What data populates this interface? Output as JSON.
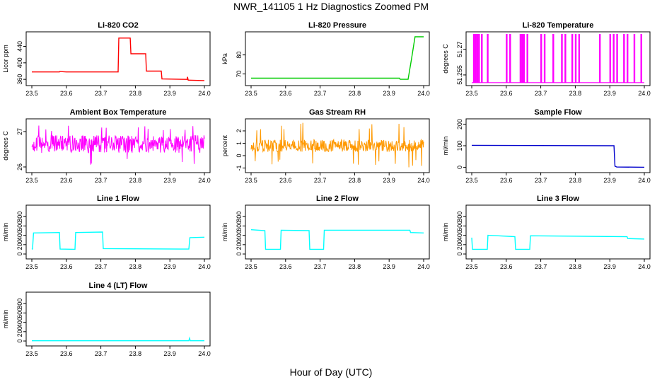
{
  "figure": {
    "title": "NWR_141105  1 Hz Diagnostics Zoomed PM",
    "xlabel": "Hour of Day (UTC)"
  },
  "chart_data": [
    {
      "type": "line",
      "title": "Li-820 CO2",
      "ylabel": "Licor ppm",
      "color": "#ff0000",
      "xlim": [
        23.5,
        24.0
      ],
      "ylim": [
        350,
        470
      ],
      "xticks": [
        23.5,
        23.6,
        23.7,
        23.8,
        23.9,
        24.0
      ],
      "yticks": [
        360,
        400,
        440
      ],
      "series": [
        {
          "x": [
            23.5,
            23.58,
            23.581,
            23.6,
            23.75,
            23.752,
            23.785,
            23.787,
            23.83,
            23.832,
            23.875,
            23.877,
            23.95,
            23.951,
            23.953,
            23.955,
            24.0
          ],
          "y": [
            378,
            378,
            379,
            378,
            378,
            460,
            460,
            422,
            422,
            380,
            380,
            361,
            360,
            366,
            358,
            358,
            357
          ]
        }
      ]
    },
    {
      "type": "line",
      "title": "Li-820 Pressure",
      "ylabel": "kPa",
      "color": "#00cc00",
      "xlim": [
        23.5,
        24.0
      ],
      "ylim": [
        65,
        91
      ],
      "xticks": [
        23.5,
        23.6,
        23.7,
        23.8,
        23.9,
        24.0
      ],
      "yticks": [
        70,
        80
      ],
      "series": [
        {
          "x": [
            23.5,
            23.93,
            23.932,
            23.955,
            23.965,
            23.975,
            24.0
          ],
          "y": [
            67.8,
            67.8,
            67.2,
            67.2,
            78,
            89.5,
            89.5
          ]
        }
      ]
    },
    {
      "type": "line",
      "title": "Li-820 Temperature",
      "ylabel": "degrees C",
      "color": "#ff00ff",
      "xlim": [
        23.5,
        24.0
      ],
      "ylim": [
        51.25,
        51.279
      ],
      "xticks": [
        23.5,
        23.6,
        23.7,
        23.8,
        23.9,
        24.0
      ],
      "yticks": [
        51.255,
        51.27
      ],
      "baseline": 51.2505,
      "spikes": [
        23.505,
        23.51,
        23.515,
        23.52,
        23.528,
        23.545,
        23.6,
        23.61,
        23.64,
        23.645,
        23.65,
        23.66,
        23.7,
        23.71,
        23.735,
        23.76,
        23.77,
        23.79,
        23.8,
        23.81,
        23.87,
        23.9,
        23.91,
        23.92,
        23.94,
        23.95,
        23.97,
        23.99
      ],
      "spike_top": 51.279
    },
    {
      "type": "line",
      "title": "Ambient Box Temperature",
      "ylabel": "degrees C",
      "color": "#ff00ff",
      "xlim": [
        23.5,
        24.0
      ],
      "ylim": [
        25.9,
        27.3
      ],
      "xticks": [
        23.5,
        23.6,
        23.7,
        23.8,
        23.9,
        24.0
      ],
      "yticks": [
        26.0,
        27.0
      ],
      "noise": {
        "center": 26.65,
        "amp": 0.25,
        "spike_min": 25.95,
        "spike_max": 27.2
      }
    },
    {
      "type": "line",
      "title": "Gas Stream RH",
      "ylabel": "percent",
      "color": "#ff9900",
      "xlim": [
        23.5,
        24.0
      ],
      "ylim": [
        -1.2,
        2.8
      ],
      "xticks": [
        23.5,
        23.6,
        23.7,
        23.8,
        23.9,
        24.0
      ],
      "yticks": [
        -1,
        0,
        1,
        2
      ],
      "noise": {
        "center": 0.8,
        "amp": 0.5,
        "spike_min": -1.0,
        "spike_max": 2.7
      }
    },
    {
      "type": "line",
      "title": "Sample Flow",
      "ylabel": "ml/min",
      "color": "#0000cc",
      "xlim": [
        23.5,
        24.0
      ],
      "ylim": [
        -15,
        215
      ],
      "xticks": [
        23.5,
        23.6,
        23.7,
        23.8,
        23.9,
        24.0
      ],
      "yticks": [
        0,
        100,
        200
      ],
      "series": [
        {
          "x": [
            23.5,
            23.9,
            23.912,
            23.915,
            23.92,
            24.0
          ],
          "y": [
            102,
            100,
            100,
            5,
            1,
            0
          ]
        }
      ]
    },
    {
      "type": "line",
      "title": "Line 1 Flow",
      "ylabel": "ml/min",
      "color": "#00ffff",
      "xlim": [
        23.5,
        24.0
      ],
      "ylim": [
        -60,
        1000
      ],
      "xticks": [
        23.5,
        23.6,
        23.7,
        23.8,
        23.9,
        24.0
      ],
      "yticks": [
        0,
        200,
        400,
        600,
        800
      ],
      "series": [
        {
          "x": [
            23.5,
            23.502,
            23.505,
            23.58,
            23.582,
            23.625,
            23.627,
            23.705,
            23.707,
            23.955,
            23.958,
            24.0
          ],
          "y": [
            100,
            110,
            450,
            460,
            105,
            100,
            460,
            470,
            115,
            105,
            350,
            360
          ]
        }
      ]
    },
    {
      "type": "line",
      "title": "Line 2 Flow",
      "ylabel": "ml/min",
      "color": "#00ffff",
      "xlim": [
        23.5,
        24.0
      ],
      "ylim": [
        -60,
        1000
      ],
      "xticks": [
        23.5,
        23.6,
        23.7,
        23.8,
        23.9,
        24.0
      ],
      "yticks": [
        0,
        200,
        400,
        600,
        800
      ],
      "series": [
        {
          "x": [
            23.5,
            23.54,
            23.542,
            23.585,
            23.587,
            23.668,
            23.67,
            23.71,
            23.712,
            23.96,
            23.962,
            24.0
          ],
          "y": [
            520,
            500,
            100,
            100,
            510,
            500,
            100,
            100,
            510,
            510,
            460,
            450
          ]
        }
      ]
    },
    {
      "type": "line",
      "title": "Line 3 Flow",
      "ylabel": "ml/min",
      "color": "#00ffff",
      "xlim": [
        23.5,
        24.0
      ],
      "ylim": [
        -60,
        1000
      ],
      "xticks": [
        23.5,
        23.6,
        23.7,
        23.8,
        23.9,
        24.0
      ],
      "yticks": [
        0,
        200,
        400,
        600,
        800
      ],
      "series": [
        {
          "x": [
            23.5,
            23.502,
            23.545,
            23.547,
            23.625,
            23.627,
            23.668,
            23.67,
            23.95,
            23.952,
            24.0
          ],
          "y": [
            350,
            100,
            100,
            400,
            370,
            100,
            100,
            390,
            370,
            330,
            320
          ]
        }
      ]
    },
    {
      "type": "line",
      "title": "Line 4 (LT) Flow",
      "ylabel": "ml/min",
      "color": "#00ffff",
      "xlim": [
        23.5,
        24.0
      ],
      "ylim": [
        -60,
        1000
      ],
      "xticks": [
        23.5,
        23.6,
        23.7,
        23.8,
        23.9,
        24.0
      ],
      "yticks": [
        0,
        200,
        400,
        600,
        800
      ],
      "series": [
        {
          "x": [
            23.5,
            23.955,
            23.957,
            23.959,
            24.0
          ],
          "y": [
            5,
            5,
            60,
            5,
            5
          ]
        }
      ]
    }
  ]
}
